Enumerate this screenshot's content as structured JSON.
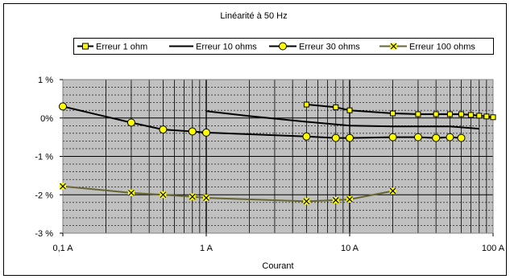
{
  "chart_data": {
    "type": "line",
    "title": "Linéarité à 50 Hz",
    "xlabel": "Courant",
    "ylabel": "",
    "xscale": "log",
    "xlim": [
      0.1,
      100
    ],
    "ylim": [
      -3,
      1
    ],
    "grid": true,
    "legend_position": "top",
    "x_ticks": [
      {
        "value": 0.1,
        "label": "0,1 A"
      },
      {
        "value": 1,
        "label": "1 A"
      },
      {
        "value": 10,
        "label": "10 A"
      },
      {
        "value": 100,
        "label": "100 A"
      }
    ],
    "y_ticks": [
      {
        "value": 1,
        "label": "1 %"
      },
      {
        "value": 0,
        "label": "0%"
      },
      {
        "value": -1,
        "label": "-1 %"
      },
      {
        "value": -2,
        "label": "-2 %"
      },
      {
        "value": -3,
        "label": "-3 %"
      }
    ],
    "series": [
      {
        "name": "Erreur 1 ohm",
        "marker": "square",
        "points": [
          [
            5,
            0.35
          ],
          [
            8,
            0.28
          ],
          [
            10,
            0.2
          ],
          [
            20,
            0.12
          ],
          [
            30,
            0.1
          ],
          [
            40,
            0.1
          ],
          [
            50,
            0.1
          ],
          [
            60,
            0.1
          ],
          [
            70,
            0.08
          ],
          [
            80,
            0.06
          ],
          [
            90,
            0.04
          ],
          [
            100,
            0.02
          ]
        ]
      },
      {
        "name": "Erreur 10 ohms",
        "marker": "none",
        "points": [
          [
            1,
            0.18
          ],
          [
            2,
            0.05
          ],
          [
            5,
            -0.1
          ],
          [
            10,
            -0.2
          ],
          [
            20,
            -0.22
          ],
          [
            50,
            -0.22
          ],
          [
            80,
            -0.28
          ]
        ]
      },
      {
        "name": "Erreur 30 ohms",
        "marker": "circle",
        "points": [
          [
            0.1,
            0.3
          ],
          [
            0.3,
            -0.12
          ],
          [
            0.5,
            -0.3
          ],
          [
            0.8,
            -0.35
          ],
          [
            1,
            -0.38
          ],
          [
            5,
            -0.48
          ],
          [
            8,
            -0.52
          ],
          [
            10,
            -0.52
          ],
          [
            20,
            -0.5
          ],
          [
            30,
            -0.5
          ],
          [
            40,
            -0.52
          ],
          [
            50,
            -0.5
          ],
          [
            60,
            -0.52
          ]
        ]
      },
      {
        "name": "Erreur 100 ohms",
        "marker": "x",
        "points": [
          [
            0.1,
            -1.78
          ],
          [
            0.3,
            -1.95
          ],
          [
            0.5,
            -2.0
          ],
          [
            0.8,
            -2.05
          ],
          [
            1,
            -2.08
          ],
          [
            5,
            -2.17
          ],
          [
            8,
            -2.14
          ],
          [
            10,
            -2.12
          ],
          [
            20,
            -1.9
          ]
        ]
      }
    ]
  },
  "colors": {
    "plot_background": "#c0c0c0",
    "grid_line": "#000000",
    "marker_fill": "#ffff00",
    "series_1ohm_line": "#000000",
    "series_10ohms_line": "#000000",
    "series_30ohms_line": "#000000",
    "series_100ohms_line": "#666633"
  }
}
